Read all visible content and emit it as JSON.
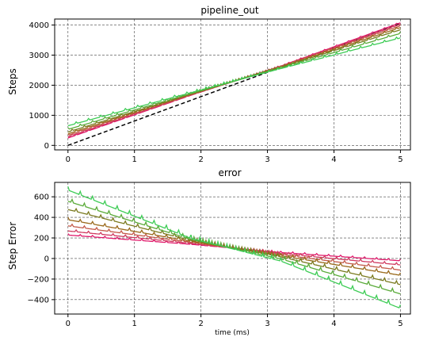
{
  "chart_data": [
    {
      "type": "line",
      "title": "pipeline_out",
      "xlabel": "",
      "ylabel": "Steps",
      "xlim": [
        -0.2,
        5.15
      ],
      "ylim": [
        -150,
        4200
      ],
      "xticks": [
        "0",
        "1",
        "2",
        "3",
        "4",
        "5"
      ],
      "yticks": [
        "0",
        "1000",
        "2000",
        "3000",
        "4000"
      ],
      "grid": true,
      "series": [
        {
          "color": "#000000",
          "style": "dashed",
          "x": [
            0,
            5
          ],
          "y": [
            0,
            4050
          ]
        },
        {
          "color": "#e0186a",
          "x": [
            0,
            1.85,
            3.2,
            5
          ],
          "y": [
            250,
            1670,
            2640,
            4080
          ]
        },
        {
          "color": "#d03a60",
          "x": [
            0,
            1.85,
            3.2,
            5
          ],
          "y": [
            290,
            1680,
            2630,
            4030
          ]
        },
        {
          "color": "#c45a4a",
          "x": [
            0,
            1.85,
            3.2,
            5
          ],
          "y": [
            340,
            1690,
            2620,
            3980
          ]
        },
        {
          "color": "#9a6a1c",
          "x": [
            0,
            1.85,
            3.2,
            5
          ],
          "y": [
            390,
            1700,
            2610,
            3920
          ]
        },
        {
          "color": "#7a7a1e",
          "x": [
            0,
            1.85,
            3.2,
            5
          ],
          "y": [
            450,
            1710,
            2600,
            3850
          ]
        },
        {
          "color": "#5bab3a",
          "x": [
            0,
            1.85,
            3.2,
            5
          ],
          "y": [
            540,
            1730,
            2580,
            3730
          ]
        },
        {
          "color": "#3dcc55",
          "x": [
            0,
            1.85,
            3.2,
            5
          ],
          "y": [
            660,
            1760,
            2560,
            3580
          ]
        }
      ]
    },
    {
      "type": "line",
      "title": "error",
      "xlabel": "time (ms)",
      "ylabel": "Step Error",
      "xlim": [
        -0.2,
        5.15
      ],
      "ylim": [
        -540,
        740
      ],
      "xticks": [
        "0",
        "1",
        "2",
        "3",
        "4",
        "5"
      ],
      "yticks": [
        "600",
        "400",
        "200",
        "0",
        "−200",
        "−400"
      ],
      "grid": true,
      "series": [
        {
          "color": "#e0186a",
          "x": [
            0,
            1.85,
            3.2,
            5
          ],
          "y": [
            230,
            140,
            60,
            -20
          ]
        },
        {
          "color": "#d03a60",
          "x": [
            0,
            1.85,
            3.2,
            5
          ],
          "y": [
            270,
            150,
            50,
            -60
          ]
        },
        {
          "color": "#c45a4a",
          "x": [
            0,
            1.85,
            3.2,
            5
          ],
          "y": [
            320,
            160,
            40,
            -110
          ]
        },
        {
          "color": "#9a6a1c",
          "x": [
            0,
            1.85,
            3.2,
            5
          ],
          "y": [
            380,
            170,
            30,
            -160
          ]
        },
        {
          "color": "#7a7a1e",
          "x": [
            0,
            1.85,
            3.2,
            5
          ],
          "y": [
            480,
            180,
            20,
            -250
          ]
        },
        {
          "color": "#5bab3a",
          "x": [
            0,
            1.85,
            3.2,
            5
          ],
          "y": [
            560,
            190,
            0,
            -340
          ]
        },
        {
          "color": "#3dcc55",
          "x": [
            0,
            1.85,
            3.2,
            5
          ],
          "y": [
            670,
            200,
            -20,
            -480
          ]
        }
      ]
    }
  ]
}
